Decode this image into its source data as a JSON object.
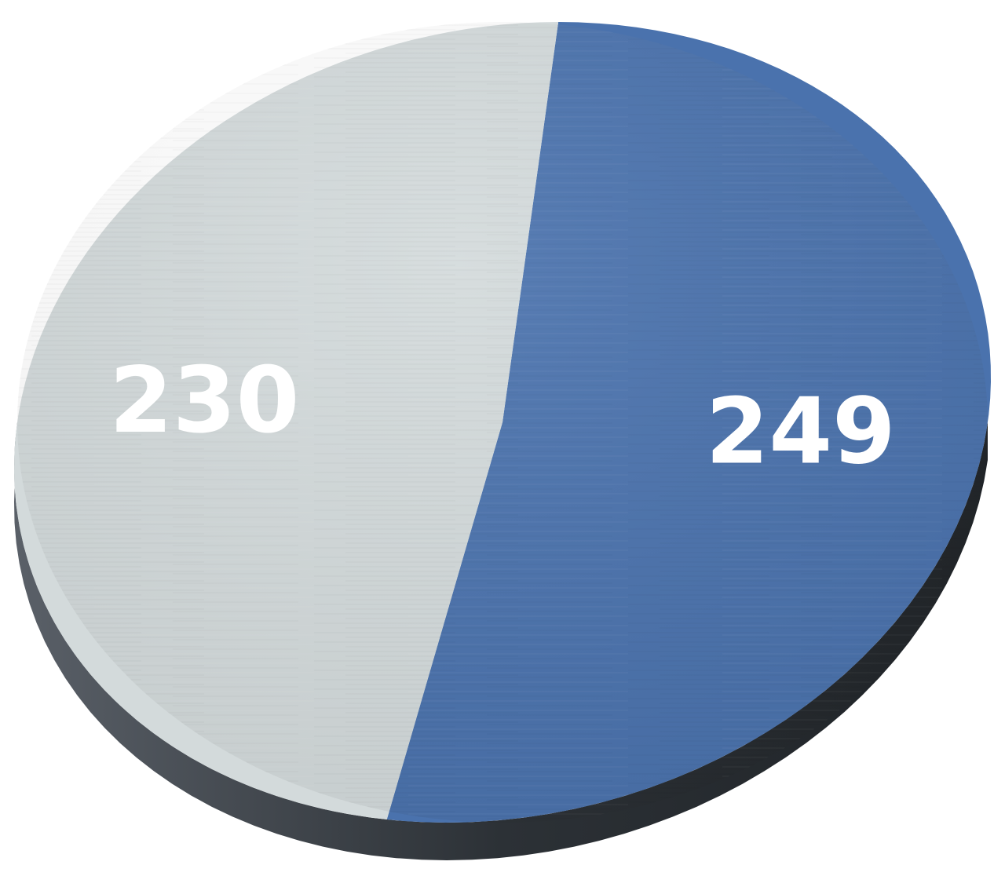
{
  "chart_data": {
    "type": "pie",
    "title": "",
    "slices": [
      {
        "label": "",
        "value": 249,
        "display": "249",
        "color": "#4a72ad"
      },
      {
        "label": "",
        "value": 230,
        "display": "230",
        "color": "#d3dadb"
      }
    ],
    "style": "3d",
    "legend": "none"
  },
  "colors": {
    "side": "#2c3136",
    "background": "#ffffff"
  }
}
